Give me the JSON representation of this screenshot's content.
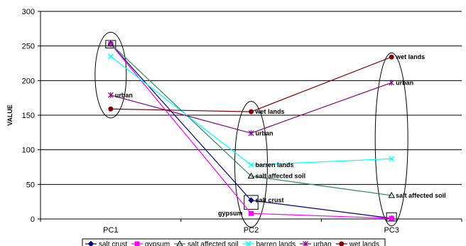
{
  "chart_data": {
    "type": "line",
    "title": "",
    "xlabel": "",
    "ylabel": "VALUE",
    "categories": [
      "PC1",
      "PC2",
      "PC3"
    ],
    "ylim": [
      0,
      300
    ],
    "yticks": [
      0,
      50,
      100,
      150,
      200,
      250,
      300
    ],
    "grid": true,
    "legend_position": "bottom",
    "series": [
      {
        "name": "salt crust",
        "color": "#000080",
        "marker": "diamond",
        "values": [
          253,
          27,
          1
        ]
      },
      {
        "name": "gypsum",
        "color": "#FF00FF",
        "marker": "square",
        "values": [
          253,
          8,
          1
        ]
      },
      {
        "name": "salt affected soil",
        "color": "#2E8B57",
        "marker": "triangle",
        "values": [
          253,
          62,
          34
        ]
      },
      {
        "name": "barren lands",
        "color": "#00FFFF",
        "marker": "x",
        "values": [
          235,
          78,
          87
        ]
      },
      {
        "name": "urban",
        "color": "#800080",
        "marker": "star",
        "values": [
          179,
          124,
          197
        ]
      },
      {
        "name": "wet lands",
        "color": "#800000",
        "marker": "circle",
        "values": [
          159,
          155,
          234
        ]
      }
    ],
    "annotations": [
      {
        "text": "urban",
        "x": "PC1",
        "y": 179,
        "anchor": "start"
      },
      {
        "text": "wet lands",
        "x": "PC2",
        "y": 155,
        "anchor": "start"
      },
      {
        "text": "urban",
        "x": "PC2",
        "y": 124,
        "anchor": "start"
      },
      {
        "text": "barren lands",
        "x": "PC2",
        "y": 78,
        "anchor": "start"
      },
      {
        "text": "salt affected soil",
        "x": "PC2",
        "y": 62,
        "anchor": "start"
      },
      {
        "text": "salt crust",
        "x": "PC2",
        "y": 27,
        "anchor": "start"
      },
      {
        "text": "gypsum",
        "x": "PC2",
        "y": 8,
        "anchor": "end"
      },
      {
        "text": "wet lands",
        "x": "PC3",
        "y": 234,
        "anchor": "start"
      },
      {
        "text": "urban",
        "x": "PC3",
        "y": 197,
        "anchor": "start"
      },
      {
        "text": "salt affected soil",
        "x": "PC3",
        "y": 34,
        "anchor": "start"
      }
    ],
    "highlight_ellipses": [
      {
        "category": "PC1",
        "y_range": [
          146,
          270
        ]
      },
      {
        "category": "PC2",
        "y_range": [
          -12,
          170
        ]
      },
      {
        "category": "PC3",
        "y_range": [
          -10,
          240
        ]
      }
    ],
    "highlight_boxes": [
      {
        "category": "PC1",
        "y_range": [
          247,
          258
        ]
      },
      {
        "category": "PC2",
        "y_range": [
          14,
          34
        ]
      },
      {
        "category": "PC3",
        "y_range": [
          -3,
          9
        ]
      }
    ]
  }
}
